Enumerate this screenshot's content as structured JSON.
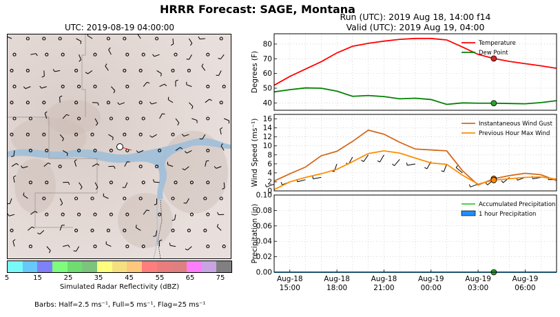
{
  "title": "HRRR Forecast: SAGE, Montana",
  "map": {
    "title": "UTC: 2019-08-19 04:00:00",
    "colorbar": {
      "label": "Simulated Radar Reflectivity (dBZ)",
      "ticks": [
        "5",
        "15",
        "25",
        "35",
        "45",
        "55",
        "65",
        "75"
      ],
      "colors": [
        "#77f9f9",
        "#66c9f9",
        "#8080f8",
        "#7dfc7d",
        "#6fdc6f",
        "#7cc47c",
        "#fefe7c",
        "#f5df80",
        "#fdc77d",
        "#fe7d7d",
        "#e97d7d",
        "#df8080",
        "#fd7dfd",
        "#c9a4e3",
        "#808080"
      ]
    },
    "barbs_note": "Barbs: Half=2.5 ms⁻¹, Full=5 ms⁻¹, Flag=25 ms⁻¹"
  },
  "run_title": {
    "line1": "Run (UTC): 2019 Aug 18, 14:00 f14",
    "line2": "Valid (UTC): 2019 Aug 19, 04:00"
  },
  "colors": {
    "temperature": "#ff0000",
    "dewpoint": "#008000",
    "gust": "#d2691e",
    "maxwind": "#ff8c00",
    "accum_precip": "#33cc33",
    "hour_precip": "#1e90ff",
    "marker_temp": "#d62728",
    "marker_green": "#2ca02c"
  },
  "chart_data": [
    {
      "type": "line",
      "ylabel": "Degrees (F)",
      "ylim": [
        35,
        87
      ],
      "yticks": [
        40,
        50,
        60,
        70,
        80
      ],
      "x": [
        "Aug18 14:00",
        "15:00",
        "16:00",
        "17:00",
        "18:00",
        "19:00",
        "20:00",
        "21:00",
        "22:00",
        "23:00",
        "Aug19 00:00",
        "01:00",
        "02:00",
        "03:00",
        "04:00",
        "05:00",
        "06:00",
        "07:00",
        "08:00"
      ],
      "series": [
        {
          "name": "Temperature",
          "values": [
            52,
            58,
            63,
            68,
            74,
            78.5,
            80.5,
            82,
            83.2,
            83.8,
            83.8,
            82.8,
            78,
            73,
            70.2,
            68.2,
            66.7,
            65.2,
            63.5
          ]
        },
        {
          "name": "Dew Point",
          "values": [
            47.5,
            49,
            50.2,
            50,
            48,
            44.5,
            45,
            44.3,
            42.8,
            43.2,
            42.3,
            39,
            40,
            39.8,
            39.8,
            39.6,
            39.4,
            40.2,
            41.5
          ]
        }
      ],
      "current_valid": "Aug19 04:00",
      "markers": {
        "temperature": 70.2,
        "dewpoint": 39.8
      },
      "legend": "top-right",
      "grid": true
    },
    {
      "type": "line",
      "ylabel": "Wind Speed (ms⁻¹)",
      "ylim": [
        0,
        17
      ],
      "yticks": [
        0,
        2,
        4,
        6,
        8,
        10,
        12,
        14,
        16
      ],
      "x": [
        "Aug18 14:00",
        "15:00",
        "16:00",
        "17:00",
        "18:00",
        "19:00",
        "20:00",
        "21:00",
        "22:00",
        "23:00",
        "Aug19 00:00",
        "01:00",
        "02:00",
        "03:00",
        "04:00",
        "05:00",
        "06:00",
        "07:00",
        "08:00"
      ],
      "series": [
        {
          "name": "Instantaneous Wind Gust",
          "values": [
            2.2,
            3.8,
            5.3,
            7.8,
            8.8,
            11,
            13.5,
            12.6,
            10.8,
            9.3,
            9.1,
            8.9,
            4.5,
            1.3,
            2.7,
            3.4,
            3.9,
            3.6,
            2.3
          ]
        },
        {
          "name": "Previous Hour Max Wind",
          "values": [
            0.3,
            2,
            3,
            3.8,
            4.8,
            6.5,
            8.3,
            8.9,
            8.4,
            7.3,
            6.2,
            5.9,
            3.5,
            1.5,
            2.4,
            2.7,
            3,
            3.1,
            2.6
          ]
        }
      ],
      "wind_barbs": [
        {
          "speed": 1.5,
          "dir": 250
        },
        {
          "speed": 2,
          "dir": 250
        },
        {
          "speed": 2.5,
          "dir": 255
        },
        {
          "speed": 3,
          "dir": 260
        },
        {
          "speed": 6,
          "dir": 200
        },
        {
          "speed": 7.5,
          "dir": 210
        },
        {
          "speed": 8,
          "dir": 215
        },
        {
          "speed": 8,
          "dir": 210
        },
        {
          "speed": 7,
          "dir": 220
        },
        {
          "speed": 6,
          "dir": 260
        },
        {
          "speed": 6.5,
          "dir": 210
        },
        {
          "speed": 6,
          "dir": 200
        },
        {
          "speed": 4,
          "dir": 310
        },
        {
          "speed": 1.5,
          "dir": 250
        },
        {
          "speed": 2.5,
          "dir": 230
        },
        {
          "speed": 3,
          "dir": 230
        },
        {
          "speed": 3,
          "dir": 250
        },
        {
          "speed": 3,
          "dir": 260
        },
        {
          "speed": 2.5,
          "dir": 270
        }
      ],
      "markers": {
        "gust": 2.7,
        "maxwind": 2.4
      },
      "legend": "top-right",
      "grid": true
    },
    {
      "type": "line",
      "ylabel": "Precipitation (in)",
      "ylim": [
        0,
        0.1
      ],
      "yticks": [
        "0.00",
        "0.02",
        "0.04",
        "0.06",
        "0.08",
        "0.10"
      ],
      "x": [
        "Aug18 14:00",
        "15:00",
        "16:00",
        "17:00",
        "18:00",
        "19:00",
        "20:00",
        "21:00",
        "22:00",
        "23:00",
        "Aug19 00:00",
        "01:00",
        "02:00",
        "03:00",
        "04:00",
        "05:00",
        "06:00",
        "07:00",
        "08:00"
      ],
      "series": [
        {
          "name": "Accumulated Precipitation",
          "values": [
            0,
            0,
            0,
            0,
            0,
            0,
            0,
            0,
            0,
            0,
            0,
            0,
            0,
            0,
            0,
            0,
            0,
            0,
            0
          ]
        },
        {
          "name": "1 hour Precipitation",
          "values": [
            0,
            0,
            0,
            0,
            0,
            0,
            0,
            0,
            0,
            0,
            0,
            0,
            0,
            0,
            0,
            0,
            0,
            0,
            0
          ]
        }
      ],
      "markers": {
        "accum": 0
      },
      "xtick_labels": [
        {
          "l1": "Aug-18",
          "l2": "15:00"
        },
        {
          "l1": "Aug-18",
          "l2": "18:00"
        },
        {
          "l1": "Aug-18",
          "l2": "21:00"
        },
        {
          "l1": "Aug-19",
          "l2": "00:00"
        },
        {
          "l1": "Aug-19",
          "l2": "03:00"
        },
        {
          "l1": "Aug-19",
          "l2": "06:00"
        }
      ],
      "legend": "top-right",
      "grid": true
    }
  ]
}
